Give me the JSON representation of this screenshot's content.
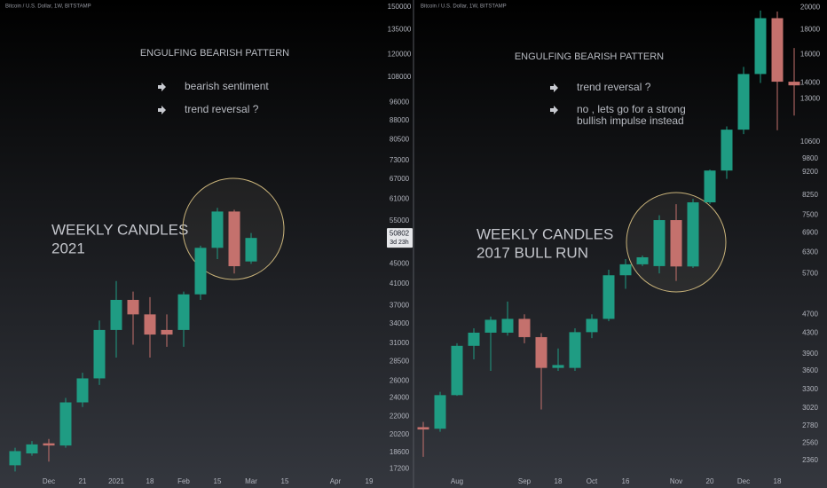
{
  "chart_data": [
    {
      "type": "candlestick",
      "title": "Bitcoin / U.S. Dollar, 1W, BITSTAMP",
      "log_scale": true,
      "up_color": "#1f9c83",
      "down_color": "#c4716d",
      "categories": [
        null,
        null,
        "Dec",
        null,
        "21",
        null,
        "2021",
        null,
        "18",
        null,
        "Feb",
        null,
        "15",
        null,
        "Mar",
        null,
        "15",
        null,
        null,
        "Apr",
        null,
        "19",
        null
      ],
      "open": [
        17500,
        18500,
        19400,
        19200,
        23500,
        26300,
        33000,
        38000,
        35500,
        33000,
        33000,
        39000,
        48500,
        57500,
        45500,
        null,
        null,
        null,
        null,
        null,
        null,
        null,
        null
      ],
      "high": [
        19000,
        19600,
        19800,
        24000,
        27000,
        34500,
        41500,
        39500,
        38500,
        35500,
        39500,
        49000,
        58500,
        58000,
        52000,
        null,
        null,
        null,
        null,
        null,
        null,
        null,
        null
      ],
      "low": [
        17000,
        18300,
        17800,
        19000,
        23000,
        25500,
        29000,
        30800,
        29000,
        30500,
        30500,
        38000,
        46000,
        43000,
        45000,
        null,
        null,
        null,
        null,
        null,
        null,
        null,
        null
      ],
      "close": [
        18700,
        19300,
        19200,
        23500,
        26300,
        33000,
        38000,
        35500,
        32300,
        32300,
        39000,
        48500,
        57500,
        44500,
        50802,
        null,
        null,
        null,
        null,
        null,
        null,
        null,
        null
      ],
      "ylim": [
        16400,
        155000
      ],
      "yticks": [
        150000,
        135000,
        120000,
        108000,
        96000,
        88000,
        80500,
        73000,
        67000,
        61000,
        55000,
        45000,
        41000,
        37000,
        34000,
        31000,
        28500,
        26000,
        24000,
        22000,
        20200,
        18600,
        17200
      ],
      "last_price": 50802,
      "countdown": "3d 23h",
      "heading": "ENGULFING BEARISH PATTERN",
      "notes": [
        [
          "bearish sentiment"
        ],
        [
          "trend reversal ?"
        ]
      ],
      "caption": [
        "WEEKLY CANDLES",
        "2021"
      ]
    },
    {
      "type": "candlestick",
      "title": "Bitcoin / U.S. Dollar, 1W, BITSTAMP",
      "log_scale": true,
      "up_color": "#1f9c83",
      "down_color": "#c4716d",
      "categories": [
        null,
        null,
        "Aug",
        null,
        null,
        null,
        "Sep",
        null,
        "18",
        null,
        "Oct",
        null,
        "16",
        null,
        null,
        "Nov",
        null,
        "20",
        null,
        "Dec",
        null,
        "18",
        null
      ],
      "open": [
        2760,
        2740,
        3210,
        4050,
        4310,
        4310,
        4600,
        4220,
        3650,
        3650,
        4320,
        4600,
        5650,
        5950,
        5900,
        7330,
        5890,
        7970,
        9260,
        11230,
        14600,
        19000,
        14080
      ],
      "high": [
        2830,
        3260,
        4100,
        4400,
        4650,
        4990,
        4700,
        4300,
        4000,
        4400,
        4700,
        5800,
        6100,
        6200,
        7500,
        7900,
        8100,
        9300,
        11400,
        15100,
        19700,
        19600,
        16500
      ],
      "low": [
        2400,
        2700,
        3200,
        3800,
        3600,
        4250,
        4100,
        3000,
        3600,
        3600,
        4200,
        4550,
        5300,
        5900,
        5700,
        5500,
        5850,
        7900,
        8900,
        11000,
        14000,
        11200,
        12000
      ],
      "close": [
        2730,
        3210,
        4050,
        4310,
        4580,
        4600,
        4220,
        3650,
        3700,
        4320,
        4600,
        5650,
        5950,
        6150,
        7330,
        5890,
        7970,
        9260,
        11230,
        14600,
        19000,
        14080,
        13840
      ],
      "ylim": [
        2160,
        20700
      ],
      "yticks": [
        20000,
        18000,
        16000,
        14000,
        13000,
        10600,
        9800,
        9200,
        8250,
        7500,
        6900,
        6300,
        5700,
        4700,
        4300,
        3900,
        3600,
        3300,
        3020,
        2780,
        2560,
        2360
      ],
      "heading": "ENGULFING BEARISH PATTERN",
      "notes": [
        [
          "trend reversal ?"
        ],
        [
          "no , lets go for a strong",
          "bullish impulse instead"
        ]
      ],
      "caption": [
        "WEEKLY CANDLES",
        "2017 BULL RUN"
      ]
    }
  ]
}
